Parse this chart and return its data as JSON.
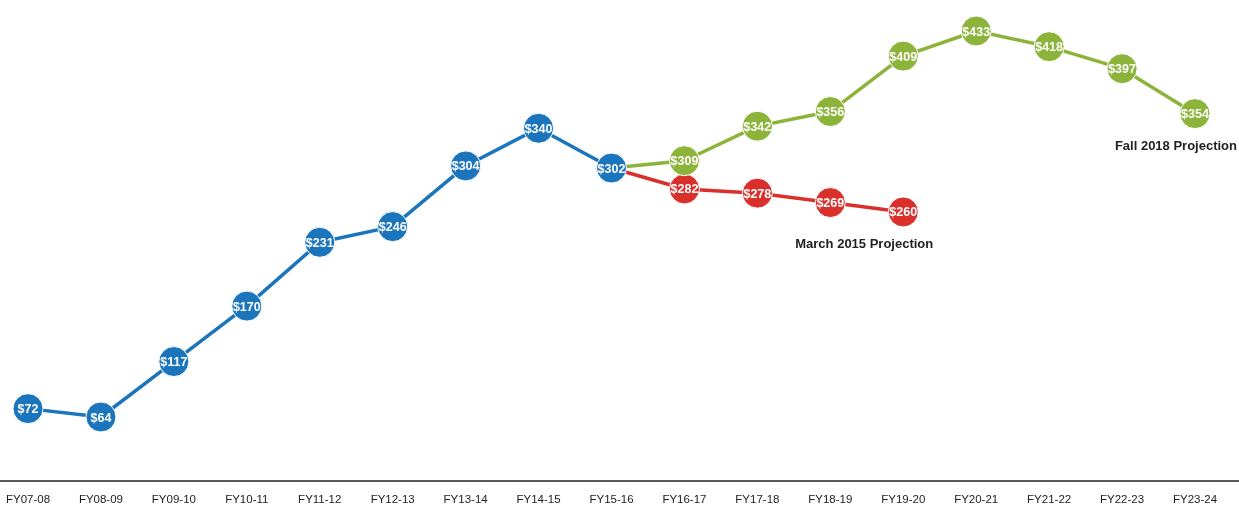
{
  "chart_data": {
    "type": "line",
    "categories": [
      "FY07-08",
      "FY08-09",
      "FY09-10",
      "FY10-11",
      "FY11-12",
      "FY12-13",
      "FY13-14",
      "FY14-15",
      "FY15-16",
      "FY16-17",
      "FY17-18",
      "FY18-19",
      "FY19-20",
      "FY20-21",
      "FY21-22",
      "FY22-23",
      "FY23-24"
    ],
    "series": [
      {
        "color": "#1b75bc",
        "values": [
          72,
          64,
          117,
          170,
          231,
          246,
          304,
          340,
          302,
          null,
          null,
          null,
          null,
          null,
          null,
          null,
          null
        ]
      },
      {
        "name": "March 2015 Projection",
        "color": "#d9302c",
        "values": [
          null,
          null,
          null,
          null,
          null,
          null,
          null,
          null,
          302,
          282,
          278,
          269,
          260,
          null,
          null,
          null,
          null
        ],
        "value_labels": [
          null,
          null,
          null,
          null,
          null,
          null,
          null,
          null,
          null,
          "$282",
          "$278",
          "$269",
          "$260",
          null,
          null,
          null,
          null
        ]
      },
      {
        "name": "Fall 2018 Projection",
        "color": "#8cb43a",
        "values": [
          null,
          null,
          null,
          null,
          null,
          null,
          null,
          null,
          302,
          309,
          342,
          356,
          409,
          433,
          418,
          397,
          354
        ],
        "value_labels": [
          null,
          null,
          null,
          null,
          null,
          null,
          null,
          null,
          null,
          "$309",
          "$342",
          "$356",
          "$409",
          "$433",
          "$418",
          "$397",
          "$354"
        ]
      }
    ],
    "value_labels": [
      "$72",
      "$64",
      "$117",
      "$170",
      "$231",
      "$246",
      "$304",
      "$340",
      "$302",
      null,
      null,
      null,
      null,
      null,
      null,
      null,
      null
    ],
    "tick_labels": "x",
    "marker": "circle",
    "line_style": "solid"
  }
}
